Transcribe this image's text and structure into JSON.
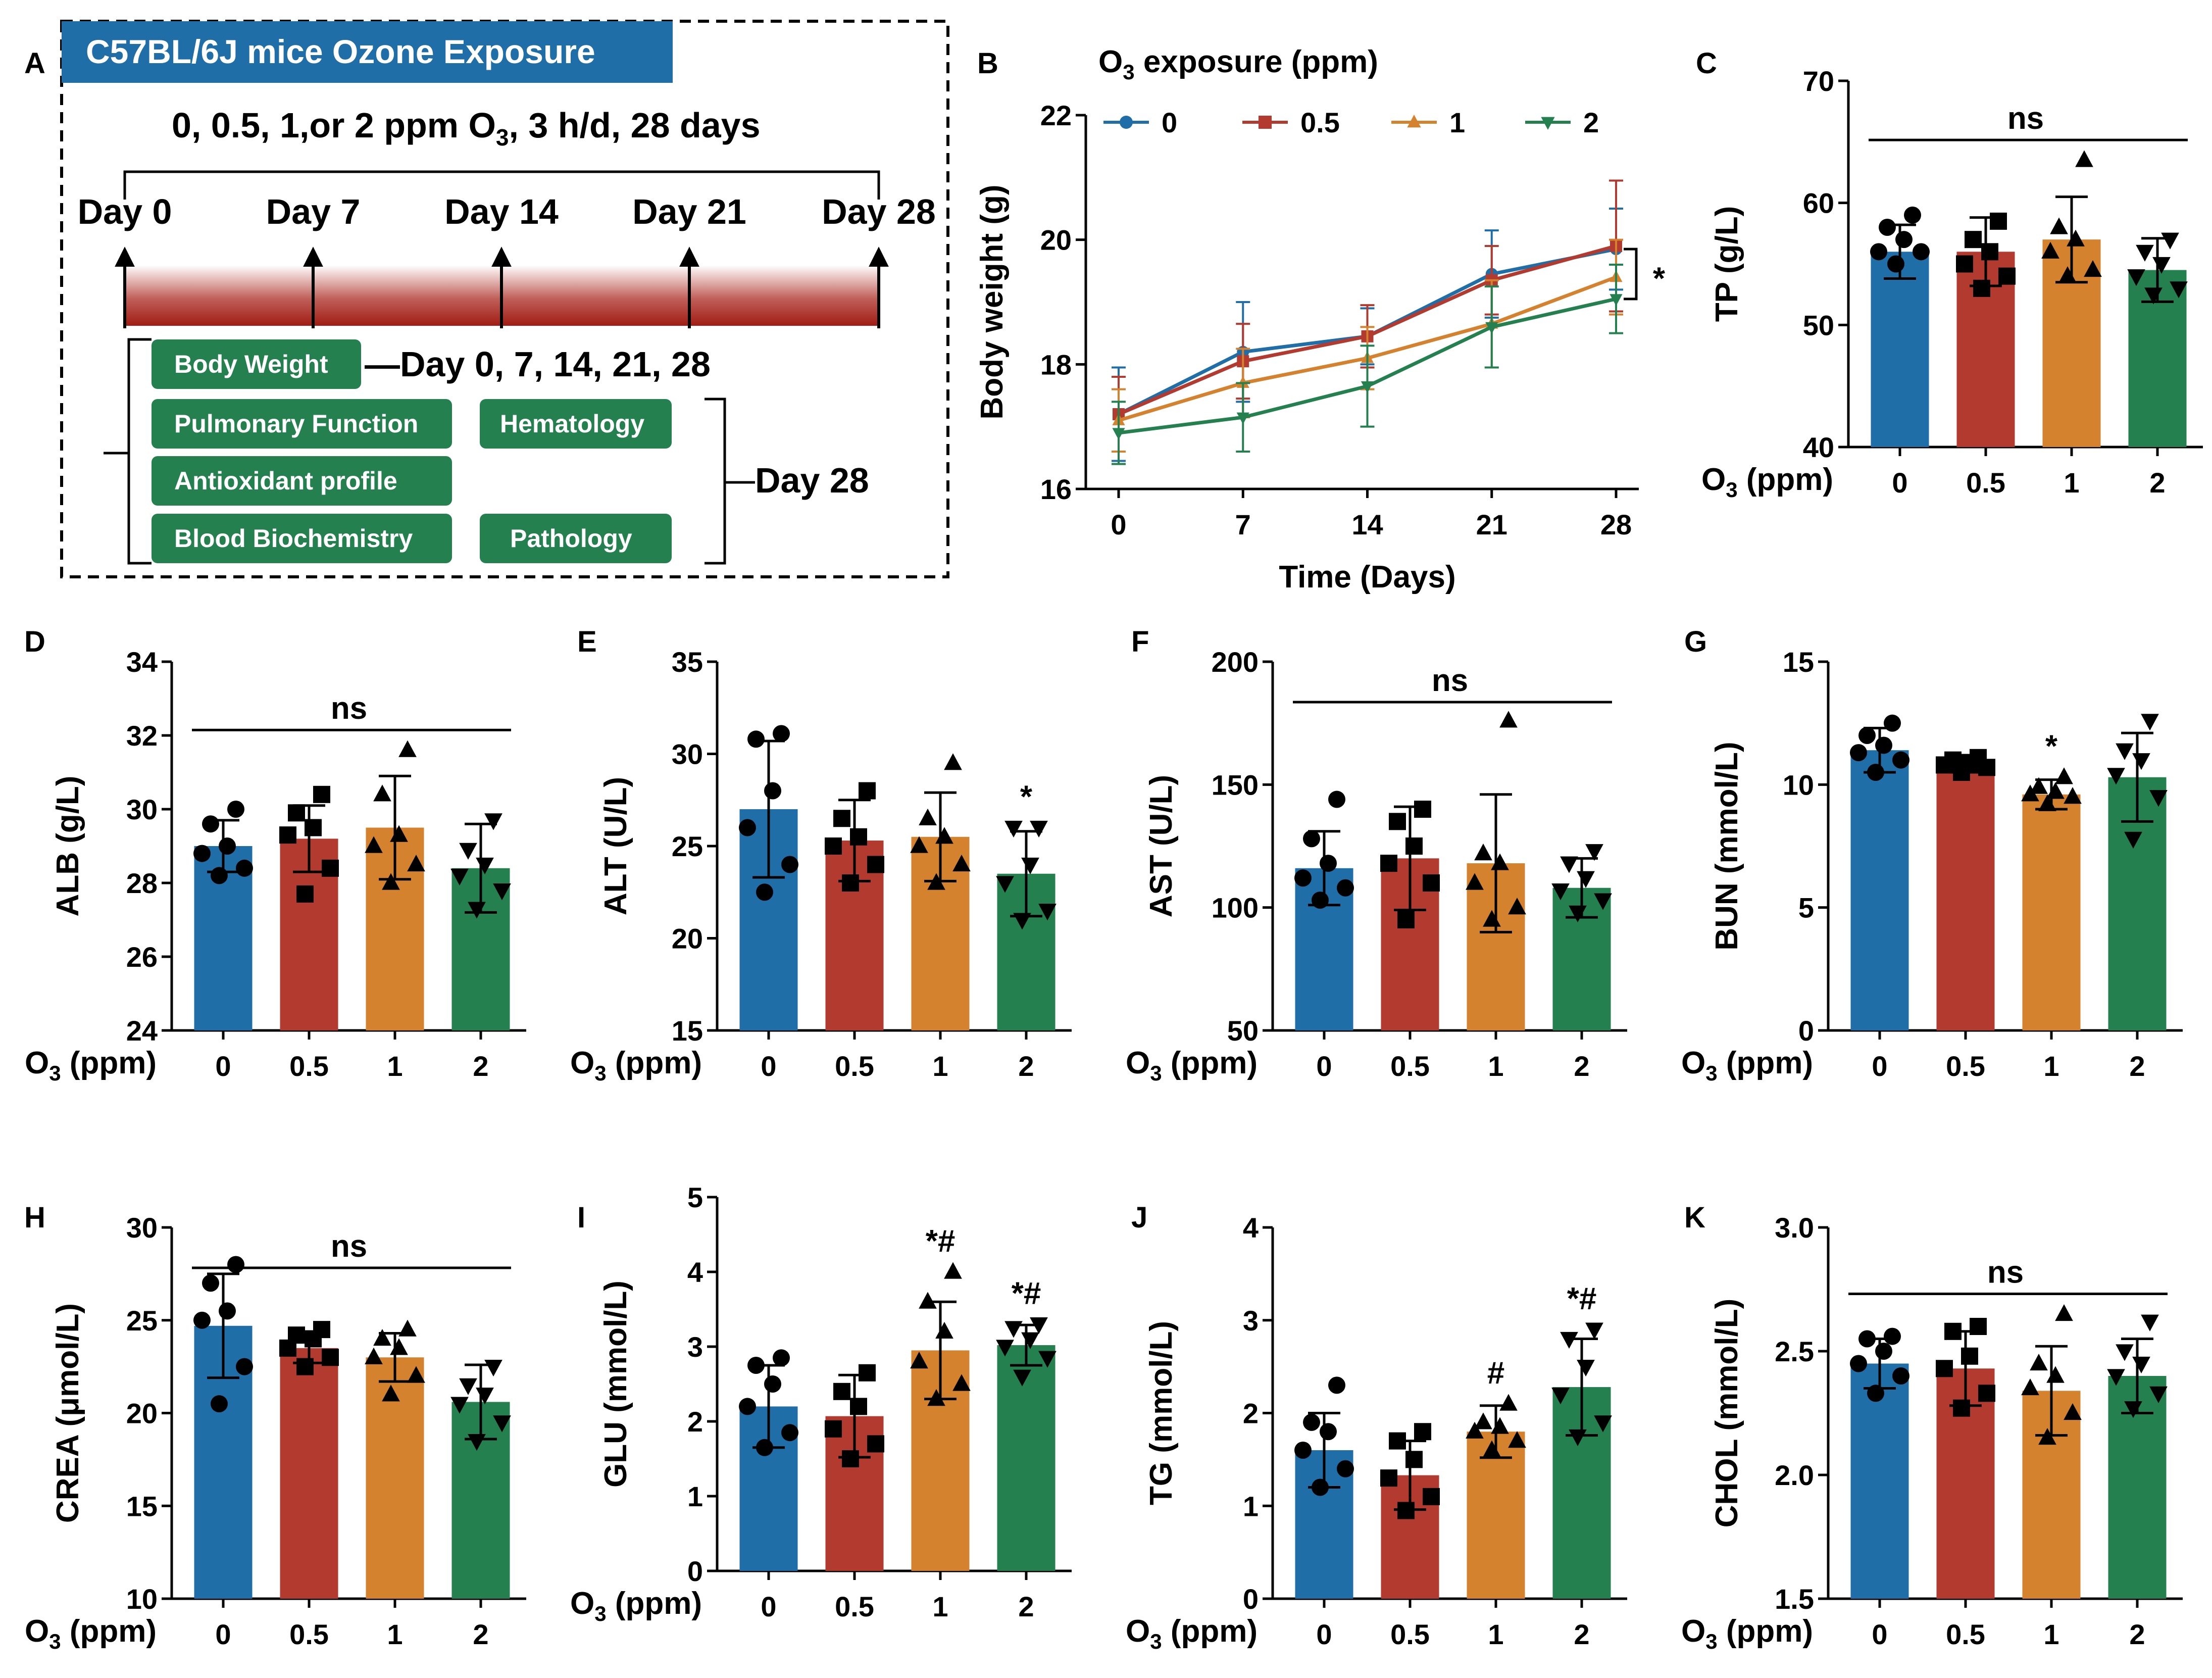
{
  "colors": {
    "c0": "#1f6ea8",
    "c05": "#b23a2e",
    "c1": "#d5822f",
    "c2": "#24814f",
    "title_bg": "#1f6ea8",
    "box_bg": "#24814f"
  },
  "panel_a": {
    "letter": "A",
    "title": "C57BL/6J mice Ozone Exposure",
    "protocol_pre": "0, 0.5, 1,or 2 ppm O",
    "protocol_sub": "3",
    "protocol_post": ", 3 h/d, 28 days",
    "days": [
      "Day 0",
      "Day 7",
      "Day 14",
      "Day 21",
      "Day 28"
    ],
    "boxes": [
      {
        "id": "body-weight",
        "label": "Body Weight"
      },
      {
        "id": "pulmonary-function",
        "label": "Pulmonary Function"
      },
      {
        "id": "hematology",
        "label": "Hematology"
      },
      {
        "id": "antioxidant-profile",
        "label": "Antioxidant profile"
      },
      {
        "id": "blood-biochemistry",
        "label": "Blood Biochemistry"
      },
      {
        "id": "pathology",
        "label": "Pathology"
      }
    ],
    "bw_days": "—Day 0, 7, 14, 21, 28",
    "day28": "Day 28"
  },
  "chart_data": [
    {
      "type": "line",
      "panel": "B",
      "title_pre": "O",
      "title_sub": "3",
      "title_post": " exposure (ppm)",
      "xlabel": "Time (Days)",
      "ylabel": "Body weight (g)",
      "x": [
        0,
        7,
        14,
        21,
        28
      ],
      "xticks": [
        "0",
        "7",
        "14",
        "21",
        "28"
      ],
      "ylim": [
        16,
        22
      ],
      "yticks": [
        "16",
        "18",
        "20",
        "22"
      ],
      "series": [
        {
          "name": "0",
          "marker": "circle",
          "values": [
            17.2,
            18.2,
            18.45,
            19.45,
            19.85
          ],
          "err": [
            0.75,
            0.8,
            0.45,
            0.7,
            0.65
          ]
        },
        {
          "name": "0.5",
          "marker": "square",
          "values": [
            17.2,
            18.05,
            18.45,
            19.35,
            19.9
          ],
          "err": [
            0.6,
            0.6,
            0.5,
            0.55,
            1.05
          ]
        },
        {
          "name": "1",
          "marker": "triangle-up",
          "values": [
            17.1,
            17.7,
            18.1,
            18.65,
            19.4
          ],
          "err": [
            0.5,
            0.55,
            0.5,
            0.7,
            0.6
          ]
        },
        {
          "name": "2",
          "marker": "triangle-down",
          "values": [
            16.9,
            17.15,
            17.65,
            18.6,
            19.05
          ],
          "err": [
            0.5,
            0.55,
            0.65,
            0.65,
            0.55
          ]
        }
      ],
      "annotation": "*"
    },
    {
      "type": "bar",
      "panel": "C",
      "ylabel": "TP (g/L)",
      "ylim": [
        40,
        70
      ],
      "yticks": [
        "40",
        "50",
        "60",
        "70"
      ],
      "categories": [
        "0",
        "0.5",
        "1",
        "2"
      ],
      "values": [
        56.0,
        56.0,
        57.0,
        54.5
      ],
      "sd": [
        2.2,
        2.8,
        3.5,
        2.6
      ],
      "points": [
        [
          55,
          56,
          56,
          57,
          58,
          59
        ],
        [
          53,
          54,
          55,
          56,
          57,
          58.5
        ],
        [
          54,
          54.5,
          56,
          57,
          58,
          63.5
        ],
        [
          52.5,
          53,
          54,
          55,
          56,
          57
        ]
      ],
      "annotations": {
        "ns": "ns"
      }
    },
    {
      "type": "bar",
      "panel": "D",
      "ylabel": "ALB (g/L)",
      "ylim": [
        24,
        34
      ],
      "yticks": [
        "24",
        "26",
        "28",
        "30",
        "32",
        "34"
      ],
      "categories": [
        "0",
        "0.5",
        "1",
        "2"
      ],
      "values": [
        29.0,
        29.2,
        29.5,
        28.4
      ],
      "sd": [
        0.7,
        0.9,
        1.4,
        1.2
      ],
      "points": [
        [
          28.2,
          28.4,
          28.8,
          29.0,
          29.6,
          30.0
        ],
        [
          27.7,
          28.4,
          29.3,
          29.5,
          29.9,
          30.4
        ],
        [
          28.0,
          28.5,
          29.0,
          29.3,
          30.4,
          31.6
        ],
        [
          27.3,
          27.8,
          28.2,
          28.5,
          28.9,
          29.7
        ]
      ],
      "annotations": {
        "ns": "ns"
      }
    },
    {
      "type": "bar",
      "panel": "E",
      "ylabel": "ALT (U/L)",
      "ylim": [
        15,
        35
      ],
      "yticks": [
        "15",
        "20",
        "25",
        "30",
        "35"
      ],
      "categories": [
        "0",
        "0.5",
        "1",
        "2"
      ],
      "values": [
        27.0,
        25.3,
        25.5,
        23.5
      ],
      "sd": [
        3.7,
        2.2,
        2.4,
        2.3
      ],
      "points": [
        [
          22.5,
          24.0,
          26.0,
          28.0,
          30.8,
          31.1
        ],
        [
          23.0,
          24.0,
          25.0,
          25.5,
          26.5,
          28.0
        ],
        [
          23.0,
          24.0,
          25.0,
          25.5,
          26.5,
          29.5
        ],
        [
          21.0,
          21.5,
          23.0,
          24.0,
          26.0,
          26.0
        ]
      ],
      "annotations": {
        "2": "*"
      }
    },
    {
      "type": "bar",
      "panel": "F",
      "ylabel": "AST (U/L)",
      "ylim": [
        50,
        200
      ],
      "yticks": [
        "50",
        "100",
        "150",
        "200"
      ],
      "categories": [
        "0",
        "0.5",
        "1",
        "2"
      ],
      "values": [
        116,
        120,
        118,
        108
      ],
      "sd": [
        15,
        21,
        28,
        12
      ],
      "points": [
        [
          103,
          108,
          112,
          118,
          128,
          144
        ],
        [
          95,
          110,
          118,
          125,
          135,
          140
        ],
        [
          95,
          100,
          110,
          118,
          122,
          176
        ],
        [
          98,
          103,
          107,
          112,
          118,
          123
        ]
      ],
      "annotations": {
        "ns": "ns"
      }
    },
    {
      "type": "bar",
      "panel": "G",
      "ylabel": "BUN (mmol/L)",
      "ylim": [
        0,
        15
      ],
      "yticks": [
        "0",
        "5",
        "10",
        "15"
      ],
      "categories": [
        "0",
        "0.5",
        "1",
        "2"
      ],
      "values": [
        11.4,
        10.8,
        9.6,
        10.3
      ],
      "sd": [
        0.9,
        0.3,
        0.6,
        1.8
      ],
      "points": [
        [
          10.5,
          11.0,
          11.3,
          11.6,
          12.0,
          12.5
        ],
        [
          10.5,
          10.7,
          10.8,
          10.9,
          11.0,
          11.1
        ],
        [
          9.2,
          9.5,
          9.6,
          9.7,
          9.9,
          10.3
        ],
        [
          7.8,
          9.5,
          10.4,
          11.0,
          11.4,
          12.6
        ]
      ],
      "annotations": {
        "1": "*"
      }
    },
    {
      "type": "bar",
      "panel": "H",
      "ylabel": "CREA (μmol/L)",
      "ylim": [
        10,
        30
      ],
      "yticks": [
        "10",
        "15",
        "20",
        "25",
        "30"
      ],
      "categories": [
        "0",
        "0.5",
        "1",
        "2"
      ],
      "values": [
        24.7,
        23.5,
        23.0,
        20.6
      ],
      "sd": [
        2.8,
        0.8,
        1.3,
        2.0
      ],
      "points": [
        [
          20.5,
          22.5,
          25.0,
          25.5,
          27.0,
          28.0
        ],
        [
          22.5,
          23.0,
          23.5,
          24.0,
          24.2,
          24.5
        ],
        [
          21.0,
          22.0,
          23.0,
          23.5,
          24.0,
          24.5
        ],
        [
          18.5,
          19.5,
          20.5,
          21.0,
          21.5,
          22.5
        ]
      ],
      "annotations": {
        "ns": "ns"
      }
    },
    {
      "type": "bar",
      "panel": "I",
      "ylabel": "GLU (mmol/L)",
      "ylim": [
        0,
        5
      ],
      "yticks": [
        "0",
        "1",
        "2",
        "3",
        "4",
        "5"
      ],
      "categories": [
        "0",
        "0.5",
        "1",
        "2"
      ],
      "values": [
        2.2,
        2.07,
        2.95,
        3.02
      ],
      "sd": [
        0.55,
        0.55,
        0.65,
        0.27
      ],
      "points": [
        [
          1.65,
          1.85,
          2.2,
          2.5,
          2.75,
          2.85
        ],
        [
          1.5,
          1.7,
          1.9,
          2.2,
          2.4,
          2.65
        ],
        [
          2.3,
          2.5,
          2.8,
          3.2,
          3.6,
          4.0
        ],
        [
          2.6,
          2.85,
          3.0,
          3.1,
          3.25,
          3.3
        ]
      ],
      "annotations": {
        "1": "*#",
        "2": "*#"
      }
    },
    {
      "type": "bar",
      "panel": "J",
      "ylabel": "TG (mmol/L)",
      "ylim": [
        0,
        4
      ],
      "yticks": [
        "0",
        "1",
        "2",
        "3",
        "4"
      ],
      "categories": [
        "0",
        "0.5",
        "1",
        "2"
      ],
      "values": [
        1.6,
        1.33,
        1.8,
        2.28
      ],
      "sd": [
        0.4,
        0.37,
        0.28,
        0.52
      ],
      "points": [
        [
          1.2,
          1.4,
          1.6,
          1.8,
          1.9,
          2.3
        ],
        [
          0.95,
          1.1,
          1.3,
          1.5,
          1.7,
          1.8
        ],
        [
          1.6,
          1.7,
          1.8,
          1.85,
          1.9,
          2.1
        ],
        [
          1.75,
          1.9,
          2.2,
          2.5,
          2.8,
          2.9
        ]
      ],
      "annotations": {
        "1": "#",
        "2": "*#"
      }
    },
    {
      "type": "bar",
      "panel": "K",
      "ylabel": "CHOL (mmol/L)",
      "ylim": [
        1.5,
        3.0
      ],
      "yticks": [
        "1.5",
        "2.0",
        "2.5",
        "3.0"
      ],
      "categories": [
        "0",
        "0.5",
        "1",
        "2"
      ],
      "values": [
        2.45,
        2.43,
        2.34,
        2.4
      ],
      "sd": [
        0.1,
        0.15,
        0.18,
        0.15
      ],
      "points": [
        [
          2.33,
          2.4,
          2.45,
          2.5,
          2.55,
          2.56
        ],
        [
          2.27,
          2.33,
          2.43,
          2.48,
          2.58,
          2.6
        ],
        [
          2.15,
          2.25,
          2.35,
          2.4,
          2.45,
          2.65
        ],
        [
          2.27,
          2.33,
          2.4,
          2.45,
          2.5,
          2.62
        ]
      ],
      "annotations": {
        "ns": "ns"
      }
    }
  ],
  "xaxis": {
    "pre": "O",
    "sub": "3",
    "post": " (ppm)"
  }
}
